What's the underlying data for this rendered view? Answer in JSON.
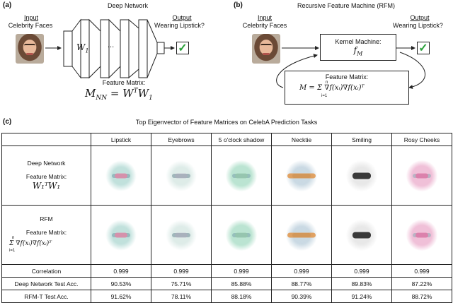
{
  "panel_a": {
    "letter": "(a)",
    "title": "Deep Network",
    "input_title": "Input",
    "input_sub": "Celebrity Faces",
    "weight_label": "W",
    "weight_sub": "1",
    "ellipsis": "...",
    "output_title": "Output",
    "output_sub": "Wearing Lipstick?",
    "check": "✓",
    "feature_label": "Feature Matrix:",
    "feature_formula": "M",
    "feature_formula_sub": "NN",
    "feature_formula_rhs": " = W",
    "feature_formula_sup": "T",
    "feature_formula_tail": "W",
    "feature_formula_tail_sub": "1"
  },
  "panel_b": {
    "letter": "(b)",
    "title": "Recursive Feature Machine (RFM)",
    "input_title": "Input",
    "input_sub": "Celebrity Faces",
    "kernel_label": "Kernel Machine:",
    "kernel_formula": "f",
    "kernel_formula_sub": "M",
    "output_title": "Output",
    "output_sub": "Wearing Lipstick?",
    "check": "✓",
    "feature_label": "Feature Matrix:",
    "feature_formula": "M = Σ ∇f(xᵢ)∇f(xᵢ)ᵀ",
    "sum_top": "n",
    "sum_bottom": "i=1"
  },
  "panel_c": {
    "letter": "(c)",
    "title": "Top Eigenvector of Feature Matrices on CelebA Prediction Tasks",
    "columns": [
      "Lipstick",
      "Eyebrows",
      "5 o'clock shadow",
      "Necktie",
      "Smiling",
      "Rosy Cheeks"
    ],
    "deep_row": {
      "name": "Deep Network",
      "feature_label": "Feature Matrix:",
      "formula": "W₁ᵀW₁"
    },
    "rfm_row": {
      "name": "RFM",
      "feature_label": "Feature Matrix:",
      "formula": "Σ ∇f(xᵢ)∇f(xᵢ)ᵀ",
      "sum_top": "n",
      "sum_bottom": "i=1"
    },
    "metric_rows": [
      {
        "label": "Correlation",
        "values": [
          "0.999",
          "0.999",
          "0.999",
          "0.999",
          "0.999",
          "0.999"
        ]
      },
      {
        "label": "Deep Network Test Acc.",
        "values": [
          "90.53%",
          "75.71%",
          "85.88%",
          "88.77%",
          "89.83%",
          "87.22%"
        ]
      },
      {
        "label": "RFM-T Test Acc.",
        "values": [
          "91.62%",
          "78.11%",
          "88.18%",
          "90.39%",
          "91.24%",
          "88.72%"
        ]
      }
    ]
  },
  "colors": {
    "check_green": "#2aa13a",
    "eig_background": "#c8c8c6",
    "necktie_orange": "#e09040",
    "lipstick_pink": "#e08aa8",
    "face_cyan": "#8ec8c0"
  }
}
